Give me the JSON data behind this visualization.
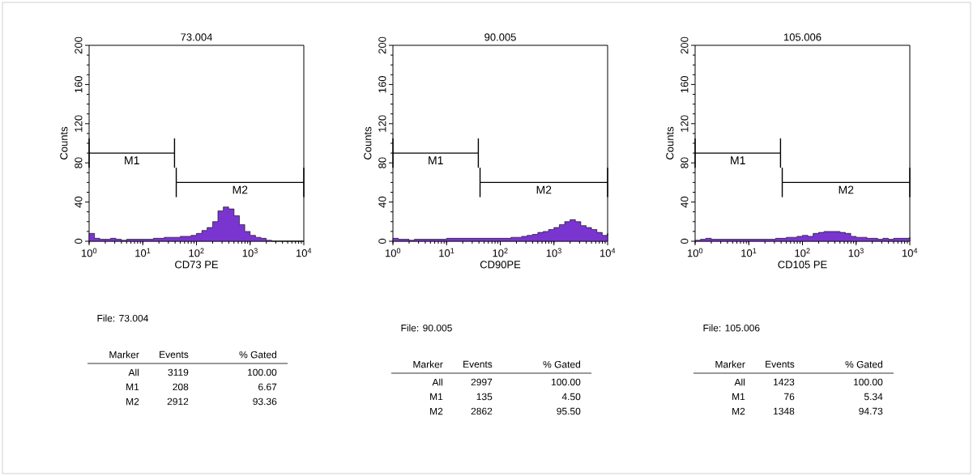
{
  "chart_data": [
    {
      "type": "area",
      "title": "73.004",
      "xlabel": "CD73 PE",
      "ylabel": "Counts",
      "log": "x",
      "x": [
        1,
        1.26,
        1.58,
        2,
        2.51,
        3.16,
        3.98,
        5.01,
        6.31,
        7.94,
        10,
        12.6,
        15.8,
        20,
        25.1,
        31.6,
        39.8,
        50.1,
        63.1,
        79.4,
        100,
        126,
        158,
        200,
        251,
        316,
        398,
        501,
        631,
        794,
        1000,
        1259,
        1585,
        1995,
        2512,
        3162,
        3981,
        5012,
        6310,
        7943,
        10000
      ],
      "series": [
        {
          "color": "#7a35d0",
          "values": [
            8,
            3,
            2,
            2,
            3,
            2,
            1,
            2,
            2,
            2,
            2,
            2,
            3,
            3,
            4,
            4,
            4,
            5,
            5,
            6,
            8,
            11,
            14,
            20,
            31,
            35,
            33,
            26,
            17,
            10,
            6,
            4,
            3,
            1,
            0,
            0,
            0,
            0,
            0,
            0,
            0
          ]
        },
        {
          "name": "M1",
          "type": "line",
          "color": "#000000",
          "x": [
            1,
            39
          ],
          "values": [
            90,
            90
          ],
          "errors": [
            15,
            15
          ]
        },
        {
          "name": "M2",
          "type": "line",
          "color": "#000000",
          "x": [
            42,
            10000
          ],
          "values": [
            60,
            60
          ],
          "errors": [
            15,
            15
          ]
        }
      ],
      "xlim": [
        1,
        10000
      ],
      "ylim": [
        0,
        200
      ],
      "xticks": [
        {
          "value": 1,
          "label": "10$^{0}$"
        },
        {
          "value": 10,
          "label": "10$^{1}$"
        },
        {
          "value": 100,
          "label": "10$^{2}$"
        },
        {
          "value": 1000,
          "label": "10$^{3}$"
        },
        {
          "value": 10000,
          "label": "10$^{4}$"
        }
      ],
      "yticks": [
        0,
        40,
        80,
        120,
        160,
        200
      ],
      "annotations": [
        "File: 73.004",
        "Marker",
        "Events",
        "% Gated",
        "All",
        "3119",
        "100.00",
        "M1",
        "208",
        "6.67",
        "M2",
        "2912",
        "93.36"
      ]
    },
    {
      "type": "area",
      "title": "90.005",
      "xlabel": "CD90PE",
      "ylabel": "Counts",
      "log": "x",
      "x": [
        1,
        1.26,
        1.58,
        2,
        2.51,
        3.16,
        3.98,
        5.01,
        6.31,
        7.94,
        10,
        12.6,
        15.8,
        20,
        25.1,
        31.6,
        39.8,
        50.1,
        63.1,
        79.4,
        100,
        126,
        158,
        200,
        251,
        316,
        398,
        501,
        631,
        794,
        1000,
        1259,
        1585,
        1995,
        2512,
        3162,
        3981,
        5012,
        6310,
        7943,
        10000
      ],
      "series": [
        {
          "color": "#7a35d0",
          "values": [
            3,
            2,
            2,
            1,
            2,
            2,
            2,
            2,
            2,
            2,
            3,
            3,
            3,
            3,
            3,
            3,
            3,
            3,
            3,
            3,
            3,
            3,
            4,
            4,
            5,
            6,
            7,
            9,
            10,
            12,
            14,
            17,
            20,
            22,
            20,
            16,
            14,
            12,
            9,
            6,
            8
          ]
        },
        {
          "name": "M1",
          "type": "line",
          "color": "#000000",
          "x": [
            1,
            39
          ],
          "values": [
            90,
            90
          ],
          "errors": [
            15,
            15
          ]
        },
        {
          "name": "M2",
          "type": "line",
          "color": "#000000",
          "x": [
            42,
            10000
          ],
          "values": [
            60,
            60
          ],
          "errors": [
            15,
            15
          ]
        }
      ],
      "xlim": [
        1,
        10000
      ],
      "ylim": [
        0,
        200
      ],
      "xticks": [
        {
          "value": 1,
          "label": "10$^{0}$"
        },
        {
          "value": 10,
          "label": "10$^{1}$"
        },
        {
          "value": 100,
          "label": "10$^{2}$"
        },
        {
          "value": 1000,
          "label": "10$^{3}$"
        },
        {
          "value": 10000,
          "label": "10$^{4}$"
        }
      ],
      "yticks": [
        0,
        40,
        80,
        120,
        160,
        200
      ],
      "annotations": [
        "File: 90.005",
        "Marker",
        "Events",
        "% Gated",
        "All",
        "2997",
        "100.00",
        "M1",
        "135",
        "4.50",
        "M2",
        "2862",
        "95.50"
      ]
    },
    {
      "type": "area",
      "title": "105.006",
      "xlabel": "CD105 PE",
      "ylabel": "Counts",
      "log": "x",
      "x": [
        1,
        1.26,
        1.58,
        2,
        2.51,
        3.16,
        3.98,
        5.01,
        6.31,
        7.94,
        10,
        12.6,
        15.8,
        20,
        25.1,
        31.6,
        39.8,
        50.1,
        63.1,
        79.4,
        100,
        126,
        158,
        200,
        251,
        316,
        398,
        501,
        631,
        794,
        1000,
        1259,
        1585,
        1995,
        2512,
        3162,
        3981,
        5012,
        6310,
        7943,
        10000
      ],
      "series": [
        {
          "color": "#7a35d0",
          "values": [
            1,
            2,
            3,
            2,
            2,
            2,
            2,
            2,
            2,
            2,
            2,
            2,
            2,
            2,
            2,
            3,
            3,
            4,
            4,
            5,
            6,
            5,
            8,
            9,
            10,
            10,
            10,
            9,
            8,
            5,
            4,
            4,
            3,
            3,
            2,
            3,
            2,
            3,
            3,
            3,
            4
          ]
        },
        {
          "name": "M1",
          "type": "line",
          "color": "#000000",
          "x": [
            1,
            39
          ],
          "values": [
            90,
            90
          ],
          "errors": [
            15,
            15
          ]
        },
        {
          "name": "M2",
          "type": "line",
          "color": "#000000",
          "x": [
            42,
            10000
          ],
          "values": [
            60,
            60
          ],
          "errors": [
            15,
            15
          ]
        }
      ],
      "xlim": [
        1,
        10000
      ],
      "ylim": [
        0,
        200
      ],
      "xticks": [
        {
          "value": 1,
          "label": "10$^{0}$"
        },
        {
          "value": 10,
          "label": "10$^{1}$"
        },
        {
          "value": 100,
          "label": "10$^{2}$"
        },
        {
          "value": 1000,
          "label": "10$^{3}$"
        },
        {
          "value": 10000,
          "label": "10$^{4}$"
        }
      ],
      "yticks": [
        0,
        40,
        80,
        120,
        160,
        200
      ],
      "annotations": [
        "File: 105.006",
        "Marker",
        "Events",
        "% Gated",
        "All",
        "1423",
        "100.00",
        "M1",
        "76",
        "5.34",
        "M2",
        "1348",
        "94.73"
      ]
    }
  ]
}
